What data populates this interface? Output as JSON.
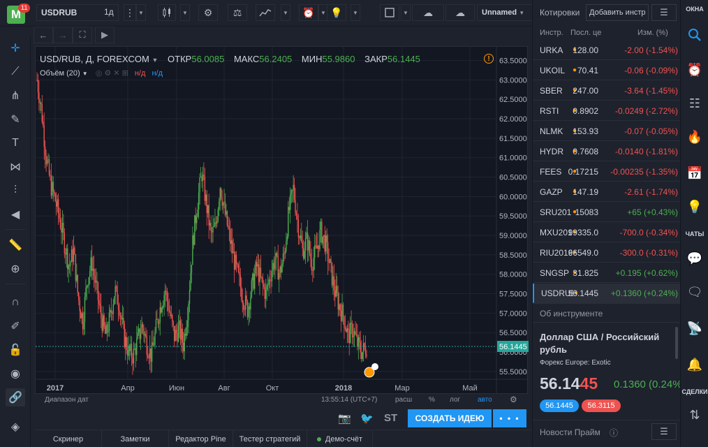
{
  "header": {
    "logo_letter": "M",
    "logo_badge": "11",
    "symbol": "USDRUB",
    "timeframe": "1д",
    "layout_name": "Unnamed"
  },
  "legend": {
    "title": "USD/RUB, Д, FOREXCOM",
    "open_label": "ОТКР",
    "open": "56.0085",
    "high_label": "МАКС",
    "high": "56.2405",
    "low_label": "МИН",
    "low": "55.9860",
    "close_label": "ЗАКР",
    "close": "56.1445",
    "volume": "Объём (20)",
    "na1": "н/д",
    "na2": "н/д"
  },
  "chart_footer": {
    "range": "Диапазон дат",
    "time": "13:55:14 (UTC+7)",
    "ext": "расш",
    "pct": "%",
    "log": "лог",
    "auto": "авто"
  },
  "actions": {
    "st": "ST",
    "create_idea": "СОЗДАТЬ ИДЕЮ",
    "more": "• • •"
  },
  "bottom_tabs": [
    "Скринер",
    "Заметки",
    "Редактор Pine",
    "Тестер стратегий",
    "Демо-счёт"
  ],
  "watchlist": {
    "title": "Котировки",
    "add_button": "Добавить инстр",
    "col_symbol": "Инстр.",
    "col_last": "Посл. це",
    "col_change": "Изм. (%)",
    "rows": [
      {
        "symbol": "URKA",
        "last": "128.00",
        "change": "-2.00 (-1.54%)",
        "dir": "neg"
      },
      {
        "symbol": "UKOIL",
        "last": "70.41",
        "change": "-0.06 (-0.09%)",
        "dir": "neg"
      },
      {
        "symbol": "SBER",
        "last": "247.00",
        "change": "-3.64 (-1.45%)",
        "dir": "neg"
      },
      {
        "symbol": "RSTI",
        "last": "0.8902",
        "change": "-0.0249 (-2.72%)",
        "dir": "neg"
      },
      {
        "symbol": "NLMK",
        "last": "153.93",
        "change": "-0.07 (-0.05%)",
        "dir": "neg"
      },
      {
        "symbol": "HYDR",
        "last": "0.7608",
        "change": "-0.0140 (-1.81%)",
        "dir": "neg"
      },
      {
        "symbol": "FEES",
        "last": "0.17215",
        "change": "-0.00235 (-1.35%)",
        "dir": "neg"
      },
      {
        "symbol": "GAZP",
        "last": "147.19",
        "change": "-2.61 (-1.74%)",
        "dir": "neg"
      },
      {
        "symbol": "SRU201",
        "last": "15083",
        "change": "+65 (+0.43%)",
        "dir": "pos"
      },
      {
        "symbol": "MXU2011",
        "last": "99335.0",
        "change": "-700.0 (-0.34%)",
        "dir": "neg"
      },
      {
        "symbol": "RIU2016",
        "last": "96549.0",
        "change": "-300.0 (-0.31%)",
        "dir": "neg"
      },
      {
        "symbol": "SNGSP",
        "last": "31.825",
        "change": "+0.195 (+0.62%)",
        "dir": "pos"
      },
      {
        "symbol": "USDRUB",
        "last": "56.1445",
        "change": "+0.1360 (+0.24%)",
        "dir": "pos",
        "selected": true
      }
    ]
  },
  "about": {
    "header": "Об инструменте",
    "name": "Доллар США / Российский рубль",
    "subtitle": "Форекс Europe: Exotic",
    "price_main": "56.14",
    "price_tail": "45",
    "change": "0.1360 (0.24%)",
    "bid": "56.1445",
    "ask": "56.3115"
  },
  "news": {
    "title": "Новости Прайм"
  },
  "rightbar": {
    "windows_label": "ОКНА",
    "chats_label": "ЧАТЫ",
    "deals_label": "СДЕЛКИ"
  },
  "colors": {
    "up": "#4caf50",
    "down": "#ef5350",
    "accent": "#2196f3",
    "background": "#131722"
  },
  "chart_data": {
    "type": "candlestick",
    "symbol": "USD/RUB",
    "ylim": [
      55.3,
      63.6
    ],
    "y_ticks": [
      "63.5000",
      "63.0000",
      "62.5000",
      "62.0000",
      "61.5000",
      "61.0000",
      "60.5000",
      "60.0000",
      "59.5000",
      "59.0000",
      "58.5000",
      "58.0000",
      "57.5000",
      "57.0000",
      "56.5000",
      "56.0000",
      "55.5000"
    ],
    "x_ticks": [
      "2017",
      "Апр",
      "Июн",
      "Авг",
      "Окт",
      "2018",
      "Мар",
      "Май"
    ],
    "last_price_label": "56.1445",
    "last_price": 56.1445,
    "close_path_weekly": [
      63.0,
      62.2,
      61.0,
      60.3,
      59.9,
      59.4,
      58.8,
      58.2,
      58.6,
      57.4,
      56.8,
      57.9,
      58.3,
      57.6,
      56.9,
      56.4,
      56.9,
      57.6,
      57.2,
      56.4,
      56.0,
      55.9,
      56.3,
      56.7,
      56.2,
      55.9,
      56.6,
      57.2,
      57.6,
      57.0,
      56.4,
      56.6,
      56.2,
      57.2,
      58.8,
      59.8,
      60.6,
      59.8,
      59.0,
      59.2,
      60.3,
      59.6,
      59.0,
      58.4,
      57.9,
      57.4,
      57.1,
      57.7,
      58.2,
      57.8,
      57.5,
      58.0,
      58.4,
      58.0,
      58.5,
      59.6,
      60.2,
      59.3,
      58.6,
      58.9,
      58.3,
      58.6,
      59.1,
      58.8,
      58.2,
      57.6,
      57.2,
      56.9,
      56.4,
      56.6,
      56.2,
      56.0,
      56.1445
    ],
    "volume_legend": "Объём (20)"
  }
}
